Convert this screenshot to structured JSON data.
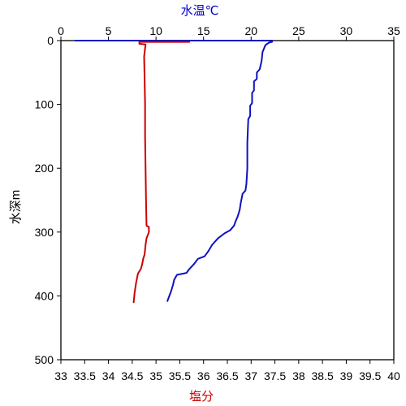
{
  "chart_data": {
    "type": "line",
    "title": "",
    "top_axis": {
      "label": "水温℃",
      "range": [
        0,
        35
      ],
      "ticks": [
        0,
        5,
        10,
        15,
        20,
        25,
        30,
        35
      ],
      "color": "#0000cc"
    },
    "bottom_axis": {
      "label": "塩分",
      "range": [
        33,
        40
      ],
      "ticks": [
        33,
        33.5,
        34,
        34.5,
        35,
        35.5,
        36,
        36.5,
        37,
        37.5,
        38,
        38.5,
        39,
        39.5,
        40
      ],
      "color": "#cc0000"
    },
    "y_axis": {
      "label": "水深m",
      "range": [
        0,
        500
      ],
      "inverted": true,
      "ticks": [
        0,
        100,
        200,
        300,
        400,
        500
      ]
    },
    "grid": false,
    "series": [
      {
        "quantity": "水温",
        "axis": "top",
        "color": "#1010c0",
        "points": [
          [
            1.5,
            0
          ],
          [
            22.2,
            0
          ],
          [
            22.2,
            2
          ],
          [
            21.9,
            3
          ],
          [
            21.5,
            7
          ],
          [
            21.2,
            18
          ],
          [
            21.1,
            32
          ],
          [
            20.9,
            45
          ],
          [
            20.6,
            50
          ],
          [
            20.6,
            60
          ],
          [
            20.3,
            64
          ],
          [
            20.3,
            78
          ],
          [
            20.1,
            82
          ],
          [
            20.1,
            98
          ],
          [
            19.9,
            102
          ],
          [
            19.9,
            118
          ],
          [
            19.7,
            123
          ],
          [
            19.6,
            160
          ],
          [
            19.6,
            200
          ],
          [
            19.5,
            225
          ],
          [
            19.4,
            235
          ],
          [
            19.1,
            240
          ],
          [
            18.9,
            255
          ],
          [
            18.8,
            265
          ],
          [
            18.6,
            275
          ],
          [
            18.4,
            282
          ],
          [
            18.2,
            290
          ],
          [
            17.8,
            297
          ],
          [
            17.2,
            302
          ],
          [
            16.5,
            310
          ],
          [
            15.9,
            320
          ],
          [
            15.5,
            330
          ],
          [
            15.1,
            338
          ],
          [
            14.4,
            342
          ],
          [
            14.0,
            350
          ],
          [
            13.5,
            358
          ],
          [
            13.2,
            364
          ],
          [
            12.2,
            367
          ],
          [
            11.9,
            375
          ],
          [
            11.8,
            382
          ],
          [
            11.6,
            392
          ],
          [
            11.4,
            400
          ],
          [
            11.2,
            408
          ]
        ]
      },
      {
        "quantity": "塩分",
        "axis": "bottom",
        "color": "#cc0000",
        "points": [
          [
            35.7,
            2
          ],
          [
            34.65,
            2
          ],
          [
            34.65,
            5
          ],
          [
            34.78,
            6
          ],
          [
            34.75,
            25
          ],
          [
            34.76,
            60
          ],
          [
            34.77,
            100
          ],
          [
            34.77,
            150
          ],
          [
            34.78,
            200
          ],
          [
            34.79,
            250
          ],
          [
            34.8,
            290
          ],
          [
            34.85,
            292
          ],
          [
            34.85,
            300
          ],
          [
            34.8,
            310
          ],
          [
            34.78,
            320
          ],
          [
            34.76,
            335
          ],
          [
            34.73,
            342
          ],
          [
            34.71,
            350
          ],
          [
            34.68,
            358
          ],
          [
            34.62,
            365
          ],
          [
            34.58,
            380
          ],
          [
            34.55,
            395
          ],
          [
            34.53,
            410
          ]
        ]
      }
    ]
  }
}
